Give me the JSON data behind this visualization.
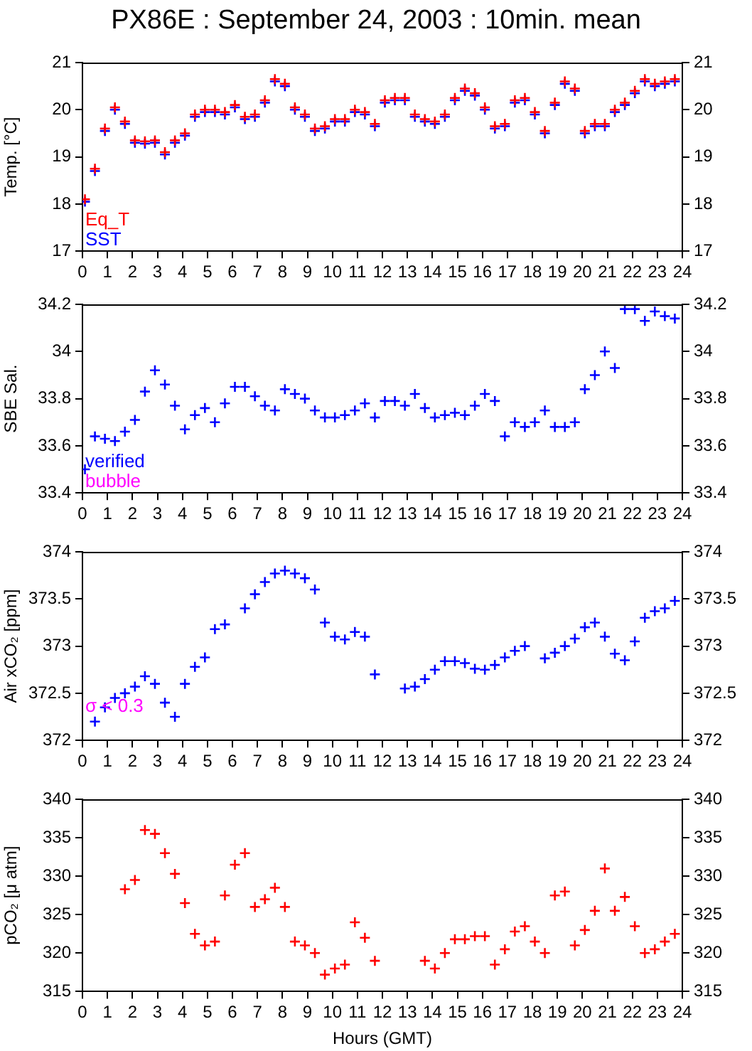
{
  "chart_data": [
    {
      "type": "scatter",
      "title": "PX86E : September 24, 2003 : 10min. mean",
      "ylabel": "Temp. [°C]",
      "marker": "cross",
      "legend": "bottom left",
      "grid": false,
      "x": [
        0.1,
        0.5,
        0.9,
        1.3,
        1.7,
        2.1,
        2.5,
        2.9,
        3.3,
        3.7,
        4.1,
        4.5,
        4.9,
        5.3,
        5.7,
        6.1,
        6.5,
        6.9,
        7.3,
        7.7,
        8.1,
        8.5,
        8.9,
        9.3,
        9.7,
        10.1,
        10.5,
        10.9,
        11.3,
        11.7,
        12.1,
        12.5,
        12.9,
        13.3,
        13.7,
        14.1,
        14.5,
        14.9,
        15.3,
        15.7,
        16.1,
        16.5,
        16.9,
        17.3,
        17.7,
        18.1,
        18.5,
        18.9,
        19.3,
        19.7,
        20.1,
        20.5,
        20.9,
        21.3,
        21.7,
        22.1,
        22.5,
        22.9,
        23.3,
        23.7
      ],
      "xlim": [
        0,
        24
      ],
      "xticks": [
        0,
        1,
        2,
        3,
        4,
        5,
        6,
        7,
        8,
        9,
        10,
        11,
        12,
        13,
        14,
        15,
        16,
        17,
        18,
        19,
        20,
        21,
        22,
        23,
        24
      ],
      "ylim": [
        17,
        21
      ],
      "yticks": [
        17,
        18,
        19,
        20,
        21
      ],
      "y2lim": [
        17,
        21
      ],
      "y2ticks": [
        17,
        18,
        19,
        20,
        21
      ],
      "series": [
        {
          "name": "Eq_T",
          "color": "#ff0000",
          "values": [
            18.1,
            18.75,
            19.6,
            20.05,
            19.75,
            19.35,
            19.33,
            19.35,
            19.1,
            19.35,
            19.5,
            19.9,
            20.0,
            20.0,
            19.95,
            20.1,
            19.85,
            19.9,
            20.2,
            20.65,
            20.55,
            20.05,
            19.9,
            19.6,
            19.65,
            19.8,
            19.8,
            20.0,
            19.95,
            19.7,
            20.2,
            20.25,
            20.25,
            19.9,
            19.8,
            19.75,
            19.9,
            20.25,
            20.45,
            20.35,
            20.05,
            19.65,
            19.7,
            20.2,
            20.25,
            19.95,
            19.55,
            20.15,
            20.6,
            20.45,
            19.55,
            19.7,
            19.7,
            20.0,
            20.15,
            20.4,
            20.65,
            20.55,
            20.6,
            20.65
          ]
        },
        {
          "name": "SST",
          "color": "#0000ff",
          "values": [
            18.05,
            18.7,
            19.55,
            20.0,
            19.7,
            19.3,
            19.28,
            19.3,
            19.05,
            19.3,
            19.45,
            19.85,
            19.95,
            19.95,
            19.9,
            20.05,
            19.8,
            19.85,
            20.15,
            20.6,
            20.5,
            20.0,
            19.85,
            19.55,
            19.6,
            19.75,
            19.75,
            19.95,
            19.9,
            19.65,
            20.15,
            20.2,
            20.2,
            19.85,
            19.75,
            19.7,
            19.85,
            20.2,
            20.4,
            20.3,
            20.0,
            19.6,
            19.65,
            20.15,
            20.2,
            19.9,
            19.5,
            20.1,
            20.55,
            20.4,
            19.5,
            19.65,
            19.65,
            19.95,
            20.1,
            20.35,
            20.6,
            20.5,
            20.55,
            20.6
          ]
        }
      ]
    },
    {
      "type": "scatter",
      "ylabel": "SBE Sal.",
      "marker": "cross",
      "legend": "bottom left",
      "grid": false,
      "x": [
        0.1,
        0.5,
        0.9,
        1.3,
        1.7,
        2.1,
        2.5,
        2.9,
        3.3,
        3.7,
        4.1,
        4.5,
        4.9,
        5.3,
        5.7,
        6.1,
        6.5,
        6.9,
        7.3,
        7.7,
        8.1,
        8.5,
        8.9,
        9.3,
        9.7,
        10.1,
        10.5,
        10.9,
        11.3,
        11.7,
        12.1,
        12.5,
        12.9,
        13.3,
        13.7,
        14.1,
        14.5,
        14.9,
        15.3,
        15.7,
        16.1,
        16.5,
        16.9,
        17.3,
        17.7,
        18.1,
        18.5,
        18.9,
        19.3,
        19.7,
        20.1,
        20.5,
        20.9,
        21.3,
        21.7,
        22.1,
        22.5,
        22.9,
        23.3,
        23.7
      ],
      "xlim": [
        0,
        24
      ],
      "xticks": [
        0,
        1,
        2,
        3,
        4,
        5,
        6,
        7,
        8,
        9,
        10,
        11,
        12,
        13,
        14,
        15,
        16,
        17,
        18,
        19,
        20,
        21,
        22,
        23,
        24
      ],
      "ylim": [
        33.4,
        34.2
      ],
      "yticks": [
        33.4,
        33.6,
        33.8,
        34,
        34.2
      ],
      "y2lim": [
        33.4,
        34.2
      ],
      "y2ticks": [
        33.4,
        33.6,
        33.8,
        34,
        34.2
      ],
      "series": [
        {
          "name": "verified",
          "color": "#0000ff",
          "values": [
            33.5,
            33.64,
            33.63,
            33.62,
            33.66,
            33.71,
            33.83,
            33.92,
            33.86,
            33.77,
            33.67,
            33.73,
            33.76,
            33.7,
            33.78,
            33.85,
            33.85,
            33.81,
            33.77,
            33.75,
            33.84,
            33.82,
            33.8,
            33.75,
            33.72,
            33.72,
            33.73,
            33.75,
            33.78,
            33.72,
            33.79,
            33.79,
            33.77,
            33.82,
            33.76,
            33.72,
            33.73,
            33.74,
            33.73,
            33.77,
            33.82,
            33.79,
            33.64,
            33.7,
            33.68,
            33.7,
            33.75,
            33.68,
            33.68,
            33.7,
            33.84,
            33.9,
            34.0,
            33.93,
            34.18,
            34.18,
            34.13,
            34.17,
            34.15,
            34.14
          ]
        }
      ],
      "annotations": [
        "bubble"
      ]
    },
    {
      "type": "scatter",
      "ylabel": "Air xCO₂ [ppm]",
      "marker": "cross",
      "grid": false,
      "annotations": [
        "σ < 0.3"
      ],
      "x": [
        0.5,
        0.9,
        1.3,
        1.7,
        2.1,
        2.5,
        2.9,
        3.3,
        3.7,
        4.1,
        4.5,
        4.9,
        5.3,
        5.7,
        6.1,
        6.5,
        6.9,
        7.3,
        7.7,
        8.1,
        8.5,
        8.9,
        9.3,
        9.7,
        10.1,
        10.5,
        10.9,
        11.3,
        11.7,
        12.1,
        12.5,
        12.9,
        13.3,
        13.7,
        14.1,
        14.5,
        14.9,
        15.3,
        15.7,
        16.1,
        16.5,
        16.9,
        17.3,
        17.7,
        18.1,
        18.5,
        18.9,
        19.3,
        19.7,
        20.1,
        20.5,
        20.9,
        21.3,
        21.7,
        22.1,
        22.5,
        22.9,
        23.3,
        23.7
      ],
      "xlim": [
        0,
        24
      ],
      "xticks": [
        0,
        1,
        2,
        3,
        4,
        5,
        6,
        7,
        8,
        9,
        10,
        11,
        12,
        13,
        14,
        15,
        16,
        17,
        18,
        19,
        20,
        21,
        22,
        23,
        24
      ],
      "ylim": [
        372,
        374
      ],
      "yticks": [
        372,
        372.5,
        373,
        373.5,
        374
      ],
      "y2lim": [
        372,
        374
      ],
      "y2ticks": [
        372,
        372.5,
        373,
        373.5,
        374
      ],
      "series": [
        {
          "color": "#0000ff",
          "values": [
            372.2,
            372.35,
            372.45,
            372.5,
            372.57,
            372.68,
            372.6,
            372.4,
            372.25,
            372.6,
            372.78,
            372.88,
            373.18,
            373.23,
            null,
            373.4,
            373.55,
            373.68,
            373.77,
            373.8,
            373.77,
            373.72,
            373.6,
            373.25,
            373.1,
            373.07,
            373.15,
            373.1,
            372.7,
            null,
            null,
            372.55,
            372.57,
            372.65,
            372.75,
            372.84,
            372.84,
            372.82,
            372.76,
            372.75,
            372.8,
            372.88,
            372.95,
            373.0,
            null,
            372.87,
            372.93,
            373.0,
            373.08,
            373.2,
            373.25,
            373.1,
            372.92,
            372.85,
            373.05,
            373.3,
            373.37,
            373.4,
            373.48
          ]
        }
      ]
    },
    {
      "type": "scatter",
      "ylabel": "pCO₂ [μ atm]",
      "xlabel": "Hours (GMT)",
      "marker": "cross",
      "grid": false,
      "x": [
        1.7,
        2.1,
        2.5,
        2.9,
        3.3,
        3.7,
        4.1,
        4.5,
        4.9,
        5.3,
        5.7,
        6.1,
        6.5,
        6.9,
        7.3,
        7.7,
        8.1,
        8.5,
        8.9,
        9.3,
        9.7,
        10.1,
        10.5,
        10.9,
        11.3,
        11.7,
        12.1,
        12.5,
        12.9,
        13.3,
        13.7,
        14.1,
        14.5,
        14.9,
        15.3,
        15.7,
        16.1,
        16.5,
        16.9,
        17.3,
        17.7,
        18.1,
        18.5,
        18.9,
        19.3,
        19.7,
        20.1,
        20.5,
        20.9,
        21.3,
        21.7,
        22.1,
        22.5,
        22.9,
        23.3,
        23.7
      ],
      "xlim": [
        0,
        24
      ],
      "xticks": [
        0,
        1,
        2,
        3,
        4,
        5,
        6,
        7,
        8,
        9,
        10,
        11,
        12,
        13,
        14,
        15,
        16,
        17,
        18,
        19,
        20,
        21,
        22,
        23,
        24
      ],
      "ylim": [
        315,
        340
      ],
      "yticks": [
        315,
        320,
        325,
        330,
        335,
        340
      ],
      "y2lim": [
        315,
        340
      ],
      "y2ticks": [
        315,
        320,
        325,
        330,
        335,
        340
      ],
      "series": [
        {
          "color": "#ff0000",
          "values": [
            328.3,
            329.5,
            336,
            335.5,
            333,
            330.3,
            326.5,
            322.5,
            321,
            321.5,
            327.5,
            331.5,
            333,
            326,
            327,
            328.5,
            326,
            321.5,
            321,
            320,
            317.2,
            318,
            318.5,
            324,
            322,
            319,
            null,
            null,
            null,
            null,
            319,
            318,
            320,
            321.8,
            321.8,
            322.2,
            322.2,
            318.5,
            320.5,
            322.8,
            323.5,
            321.5,
            320,
            327.5,
            328,
            321,
            323,
            325.5,
            331,
            325.5,
            327.3,
            323.5,
            320,
            320.5,
            321.5,
            322.5
          ]
        }
      ]
    }
  ]
}
